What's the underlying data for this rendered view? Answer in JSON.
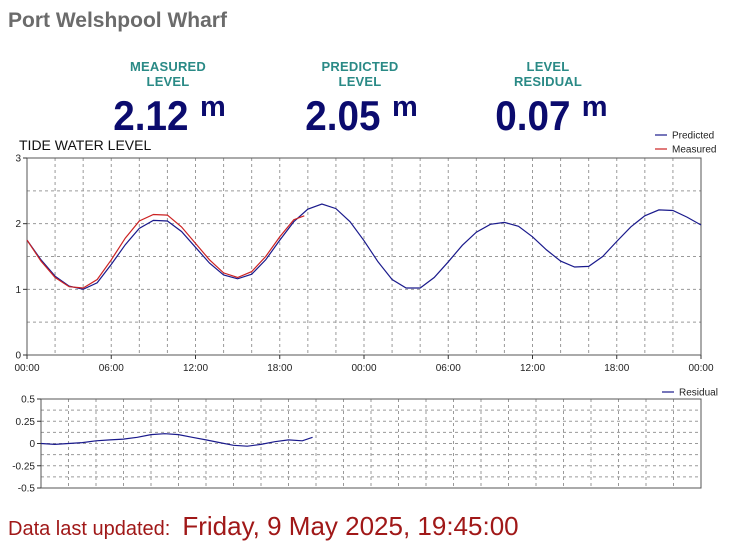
{
  "header": {
    "title": "Port Welshpool Wharf"
  },
  "metrics": [
    {
      "label": "MEASURED LEVEL",
      "value": "2.12",
      "unit": "m"
    },
    {
      "label": "PREDICTED LEVEL",
      "value": "2.05",
      "unit": "m"
    },
    {
      "label": "LEVEL RESIDUAL",
      "value": "0.07",
      "unit": "m"
    }
  ],
  "footer": {
    "label": "Data last updated:",
    "value": "Friday, 9 May 2025, 19:45:00"
  },
  "colors": {
    "predicted": "#1a1a8c",
    "measured": "#cc2222",
    "residual": "#1a1a8c",
    "grid": "#9a9a9a"
  },
  "chart_data": [
    {
      "type": "line",
      "title": "TIDE WATER LEVEL",
      "xlabel": "",
      "ylabel": "",
      "xlim": [
        0,
        48
      ],
      "ylim": [
        0,
        3
      ],
      "yticks": [
        0,
        1,
        2,
        3
      ],
      "xticks": [
        0,
        6,
        12,
        18,
        24,
        30,
        36,
        42,
        48
      ],
      "xtick_labels": [
        "00:00",
        "06:00",
        "12:00",
        "18:00",
        "00:00",
        "06:00",
        "12:00",
        "18:00",
        "00:00"
      ],
      "grid": true,
      "legend": "top-right",
      "series": [
        {
          "name": "Predicted",
          "x": [
            0,
            1,
            2,
            3,
            4,
            5,
            6,
            7,
            8,
            9,
            10,
            11,
            12,
            13,
            14,
            15,
            16,
            17,
            18,
            19,
            20,
            21,
            22,
            23,
            24,
            25,
            26,
            27,
            28,
            29,
            30,
            31,
            32,
            33,
            34,
            35,
            36,
            37,
            38,
            39,
            40,
            41,
            42,
            43,
            44,
            45,
            46,
            47,
            48
          ],
          "values": [
            1.75,
            1.45,
            1.2,
            1.05,
            1.0,
            1.1,
            1.38,
            1.68,
            1.93,
            2.05,
            2.04,
            1.88,
            1.64,
            1.4,
            1.22,
            1.16,
            1.23,
            1.45,
            1.75,
            2.03,
            2.22,
            2.3,
            2.23,
            2.03,
            1.74,
            1.42,
            1.15,
            1.02,
            1.02,
            1.18,
            1.42,
            1.67,
            1.87,
            1.99,
            2.02,
            1.96,
            1.8,
            1.6,
            1.43,
            1.34,
            1.35,
            1.5,
            1.73,
            1.95,
            2.12,
            2.21,
            2.2,
            2.1,
            1.98
          ]
        },
        {
          "name": "Measured",
          "x": [
            0,
            1,
            2,
            3,
            4,
            5,
            6,
            7,
            8,
            9,
            10,
            11,
            12,
            13,
            14,
            15,
            16,
            17,
            18,
            19,
            19.75
          ],
          "values": [
            1.75,
            1.43,
            1.18,
            1.04,
            1.02,
            1.15,
            1.45,
            1.78,
            2.04,
            2.14,
            2.13,
            1.95,
            1.7,
            1.45,
            1.25,
            1.18,
            1.27,
            1.5,
            1.8,
            2.06,
            2.12
          ]
        }
      ]
    },
    {
      "type": "line",
      "title": "",
      "xlabel": "",
      "ylabel": "",
      "xlim": [
        0,
        48
      ],
      "ylim": [
        -0.5,
        0.5
      ],
      "yticks": [
        -0.5,
        -0.25,
        0,
        0.25,
        0.5
      ],
      "ytick_labels": [
        "-0.5",
        "-0.25",
        "0",
        "0.25",
        "0.5"
      ],
      "grid": true,
      "legend": "top-right",
      "series": [
        {
          "name": "Residual",
          "x": [
            0,
            1,
            2,
            3,
            4,
            5,
            6,
            7,
            8,
            9,
            10,
            11,
            12,
            13,
            14,
            15,
            16,
            17,
            18,
            19,
            19.75
          ],
          "values": [
            0.0,
            -0.01,
            0.0,
            0.01,
            0.03,
            0.04,
            0.05,
            0.07,
            0.1,
            0.11,
            0.1,
            0.07,
            0.04,
            0.01,
            -0.02,
            -0.03,
            -0.01,
            0.02,
            0.04,
            0.03,
            0.07
          ]
        }
      ]
    }
  ]
}
